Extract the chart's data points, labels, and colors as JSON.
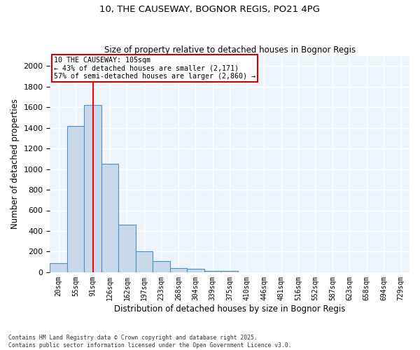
{
  "title1": "10, THE CAUSEWAY, BOGNOR REGIS, PO21 4PG",
  "title2": "Size of property relative to detached houses in Bognor Regis",
  "xlabel": "Distribution of detached houses by size in Bognor Regis",
  "ylabel": "Number of detached properties",
  "categories": [
    "20sqm",
    "55sqm",
    "91sqm",
    "126sqm",
    "162sqm",
    "197sqm",
    "233sqm",
    "268sqm",
    "304sqm",
    "339sqm",
    "375sqm",
    "410sqm",
    "446sqm",
    "481sqm",
    "516sqm",
    "552sqm",
    "587sqm",
    "623sqm",
    "658sqm",
    "694sqm",
    "729sqm"
  ],
  "values": [
    90,
    1420,
    1620,
    1050,
    460,
    200,
    110,
    40,
    35,
    15,
    10,
    0,
    0,
    0,
    0,
    0,
    0,
    0,
    0,
    0,
    0
  ],
  "bar_color": "#c8d8e8",
  "bar_edge_color": "#5090c0",
  "red_line_index": 2,
  "annotation_title": "10 THE CAUSEWAY: 105sqm",
  "annotation_line2": "← 43% of detached houses are smaller (2,171)",
  "annotation_line3": "57% of semi-detached houses are larger (2,860) →",
  "annotation_box_color": "#ffffff",
  "annotation_border_color": "#cc0000",
  "ylim": [
    0,
    2100
  ],
  "yticks": [
    0,
    200,
    400,
    600,
    800,
    1000,
    1200,
    1400,
    1600,
    1800,
    2000
  ],
  "footer1": "Contains HM Land Registry data © Crown copyright and database right 2025.",
  "footer2": "Contains public sector information licensed under the Open Government Licence v3.0.",
  "bg_color": "#eef4fb",
  "grid_color": "#ffffff"
}
